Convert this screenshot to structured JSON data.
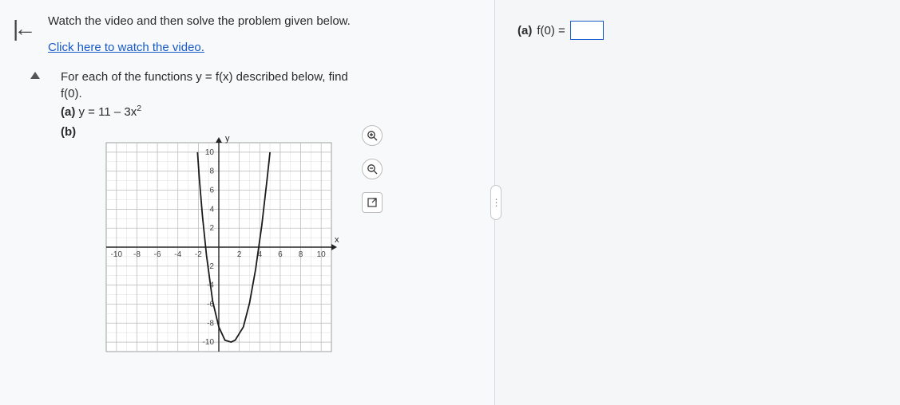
{
  "left": {
    "instruction": "Watch the video and then solve the problem given below.",
    "video_link": "Click here to watch the video.",
    "prompt_line1": "For each of the functions y = f(x) described below, find",
    "prompt_line2": "f(0).",
    "part_a_label": "(a)",
    "part_a_eq_pre": " y = 11 – 3x",
    "part_a_eq_sup": "2",
    "part_b_label": "(b)"
  },
  "chart": {
    "type": "line",
    "xlim": [
      -11,
      11
    ],
    "ylim": [
      -11,
      11
    ],
    "tick_step": 2,
    "major_grid_color": "#b9b9b9",
    "minor_grid_color": "#dcdcdc",
    "axis_color": "#242424",
    "curve_color": "#1b1b1b",
    "background_color": "#ffffff",
    "curve_width": 1.8,
    "axis_label_y": "y",
    "axis_label_x": "x",
    "label_fontsize": 11,
    "tick_fontsize": 10,
    "curve_points": [
      [
        -2.08,
        10
      ],
      [
        -1.9,
        7.2
      ],
      [
        -1.6,
        3.3
      ],
      [
        -1.2,
        -0.9
      ],
      [
        -0.6,
        -5.7
      ],
      [
        0,
        -8.4
      ],
      [
        0.6,
        -9.8
      ],
      [
        1.2,
        -10
      ],
      [
        1.6,
        -9.8
      ],
      [
        2.4,
        -8.4
      ],
      [
        3.0,
        -5.9
      ],
      [
        3.6,
        -2.3
      ],
      [
        4.2,
        2.3
      ],
      [
        4.7,
        7
      ],
      [
        5.0,
        10
      ]
    ],
    "x_tick_labels": [
      "-10",
      "-8",
      "-6",
      "-4",
      "-2",
      "2",
      "4",
      "6",
      "8",
      "10"
    ],
    "y_tick_labels": [
      "10",
      "8",
      "6",
      "4",
      "2",
      "-2",
      "-4",
      "-6",
      "-8",
      "-10"
    ]
  },
  "tools": {
    "zoom_in": "zoom-in-icon",
    "zoom_out": "zoom-out-icon",
    "expand": "expand-icon"
  },
  "right": {
    "answer_label_a": "(a)",
    "answer_expr": " f(0) = "
  },
  "colors": {
    "link": "#1659c7",
    "panel_bg_left": "#f8f9fa",
    "panel_bg_right": "#f5f6f8",
    "text": "#2b2b2b"
  }
}
